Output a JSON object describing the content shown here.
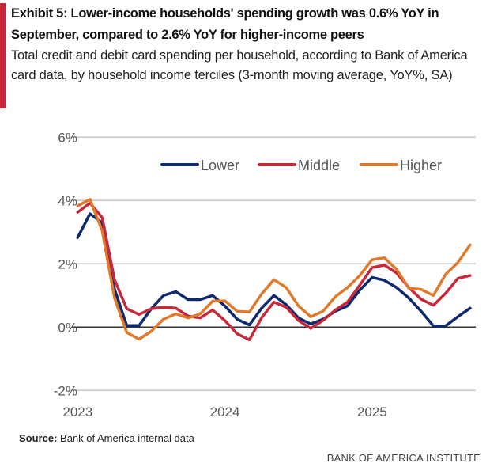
{
  "title": "Exhibit 5: Lower-income households' spending growth was 0.6% YoY in September, compared to 2.6% YoY for higher-income peers",
  "subtitle": "Total credit and debit card spending per household, according to Bank of America card data, by household income terciles (3-month moving average, YoY%, SA)",
  "source_label": "Source:",
  "source_text": "Bank of America internal data",
  "logo": "BANK OF AMERICA INSTITUTE",
  "chart_data": {
    "type": "line",
    "x_start": "2023-01",
    "x_end": "2025-09",
    "frequency": "monthly",
    "x_tick_labels": [
      "2023",
      "2024",
      "2025"
    ],
    "y_tick_labels": [
      "6%",
      "4%",
      "2%",
      "0%",
      "-2%"
    ],
    "ylim": [
      -2,
      6
    ],
    "y_ticks": [
      6,
      4,
      2,
      0,
      -2
    ],
    "grid": true,
    "legend_placement": "top-right",
    "series": [
      {
        "name": "Lower",
        "color": "#0d2a6e",
        "values": [
          2.83,
          3.58,
          3.3,
          1.2,
          0.05,
          0.05,
          0.58,
          1.0,
          1.12,
          0.87,
          0.87,
          1.0,
          0.67,
          0.25,
          0.07,
          0.6,
          1.0,
          0.71,
          0.29,
          0.1,
          0.25,
          0.5,
          0.67,
          1.17,
          1.57,
          1.48,
          1.25,
          0.92,
          0.5,
          0.04,
          0.04,
          0.33,
          0.6
        ]
      },
      {
        "name": "Middle",
        "color": "#c8283a",
        "values": [
          3.63,
          3.92,
          3.46,
          1.5,
          0.58,
          0.4,
          0.58,
          0.63,
          0.6,
          0.35,
          0.29,
          0.54,
          0.21,
          -0.21,
          -0.4,
          0.3,
          0.79,
          0.63,
          0.21,
          -0.04,
          0.21,
          0.54,
          0.79,
          1.33,
          1.88,
          1.96,
          1.71,
          1.25,
          0.88,
          0.69,
          1.07,
          1.54,
          1.63
        ]
      },
      {
        "name": "Higher",
        "color": "#e07a2a",
        "values": [
          3.83,
          4.04,
          3.04,
          0.92,
          -0.17,
          -0.38,
          -0.13,
          0.25,
          0.42,
          0.29,
          0.42,
          0.82,
          0.83,
          0.5,
          0.48,
          1.05,
          1.5,
          1.25,
          0.67,
          0.33,
          0.5,
          0.96,
          1.25,
          1.63,
          2.13,
          2.19,
          1.83,
          1.23,
          1.19,
          1.0,
          1.67,
          2.04,
          2.6
        ]
      }
    ]
  }
}
